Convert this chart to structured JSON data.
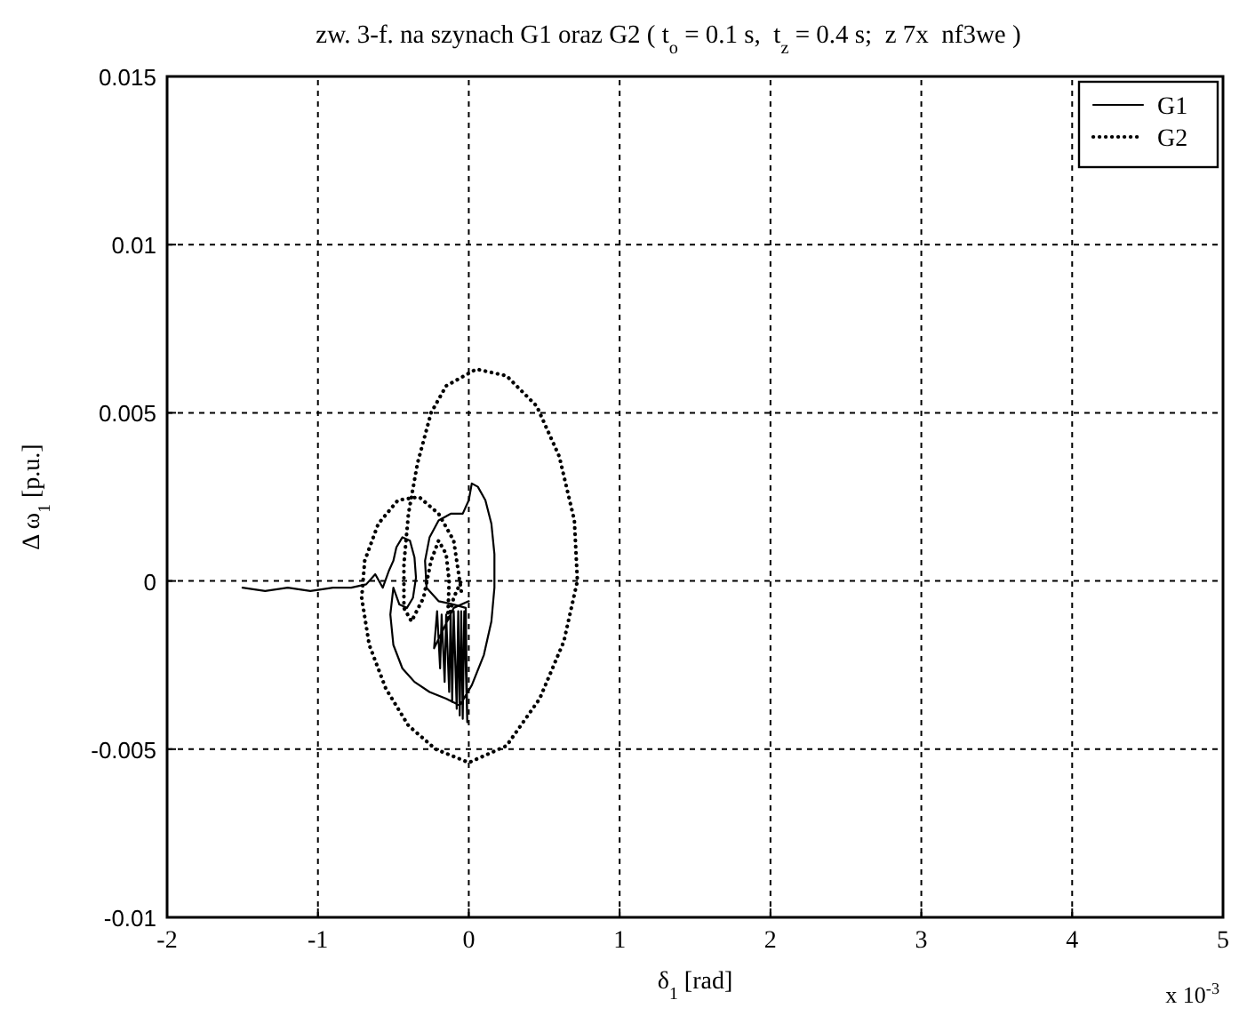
{
  "chart_data": {
    "type": "line",
    "title": "zw. 3-f. na szynach G1 oraz G2 ( t$_{o}$ = 0.1 s,  t$_{z}$ = 0.4 s;  z 7x  nf3we )",
    "xlabel": "δ$_{1}$ [rad]",
    "ylabel": "Δ ω$_{1}$ [p.u.]",
    "annotations": [
      "x 10$^{-3}$"
    ],
    "xlim": [
      -2,
      5
    ],
    "xticks": [
      -2,
      -1,
      0,
      1,
      2,
      3,
      4,
      5
    ],
    "ylim": [
      -0.01,
      0.015
    ],
    "yticks": [
      -0.01,
      -0.005,
      0,
      0.005,
      0.01,
      0.015
    ],
    "grid": true,
    "legend": "top right",
    "series": [
      {
        "name": "G1",
        "line_style": "solid",
        "color": "#000000",
        "x": [
          -1.5,
          -1.35,
          -1.2,
          -1.05,
          -0.9,
          -0.78,
          -0.68,
          -0.62,
          -0.57,
          -0.53,
          -0.5,
          -0.48,
          -0.44,
          -0.39,
          -0.36,
          -0.35,
          -0.37,
          -0.41,
          -0.46,
          -0.5,
          -0.52,
          -0.5,
          -0.44,
          -0.36,
          -0.26,
          -0.15,
          -0.06,
          0.02,
          0.1,
          0.15,
          0.17,
          0.17,
          0.15,
          0.11,
          0.06,
          0.02,
          0,
          -0.04,
          -0.12,
          -0.2,
          -0.26,
          -0.29,
          -0.28,
          -0.2,
          -0.1,
          -0.02,
          -0.01,
          -0.03,
          -0.04,
          -0.05,
          -0.06,
          -0.07,
          -0.08,
          -0.1,
          -0.11,
          -0.12,
          -0.13,
          -0.15,
          -0.16,
          -0.18,
          -0.19,
          -0.21,
          -0.23,
          -0.1,
          0
        ],
        "values": [
          -0.0002,
          -0.0003,
          -0.0002,
          -0.0003,
          -0.0002,
          -0.0002,
          -0.0001,
          0.0002,
          -0.0002,
          0.0003,
          0.0006,
          0.001,
          0.0013,
          0.0012,
          0.0007,
          0.0001,
          -0.0005,
          -0.0008,
          -0.0007,
          -0.0002,
          -0.001,
          -0.0019,
          -0.0026,
          -0.003,
          -0.0033,
          -0.0035,
          -0.0037,
          -0.0031,
          -0.0022,
          -0.0012,
          -0.0002,
          0.0008,
          0.0017,
          0.0024,
          0.0028,
          0.0029,
          0.0024,
          0.002,
          0.002,
          0.0018,
          0.0013,
          0.0006,
          -0.0002,
          -0.0006,
          -0.0007,
          -0.0008,
          -0.0042,
          -0.0009,
          -0.0041,
          -0.0009,
          -0.004,
          -0.0009,
          -0.0038,
          -0.0009,
          -0.0036,
          -0.0009,
          -0.0033,
          -0.001,
          -0.003,
          -0.001,
          -0.0026,
          -0.0009,
          -0.002,
          -0.0008,
          -0.0006
        ]
      },
      {
        "name": "G2",
        "line_style": "dotted",
        "color": "#000000",
        "x": [
          -0.05,
          -0.1,
          -0.2,
          -0.33,
          -0.47,
          -0.6,
          -0.69,
          -0.71,
          -0.66,
          -0.55,
          -0.4,
          -0.22,
          0,
          0.25,
          0.47,
          0.63,
          0.72,
          0.7,
          0.6,
          0.45,
          0.25,
          0.05,
          -0.15,
          -0.25,
          -0.34,
          -0.4,
          -0.43,
          -0.43,
          -0.38,
          -0.3,
          -0.25,
          -0.2,
          -0.15,
          -0.13,
          -0.14,
          -0.1,
          -0.05
        ],
        "values": [
          -0.0003,
          0.0012,
          0.002,
          0.0025,
          0.0024,
          0.0017,
          0.0006,
          -0.0005,
          -0.0019,
          -0.0032,
          -0.0043,
          -0.005,
          -0.0054,
          -0.0049,
          -0.0035,
          -0.0018,
          0,
          0.0018,
          0.0037,
          0.0052,
          0.0061,
          0.0063,
          0.0058,
          0.005,
          0.0035,
          0.002,
          0.0005,
          -0.0008,
          -0.0012,
          -0.0005,
          0.0006,
          0.0012,
          0.0008,
          0,
          -0.0012,
          -0.0005,
          0
        ]
      }
    ]
  }
}
